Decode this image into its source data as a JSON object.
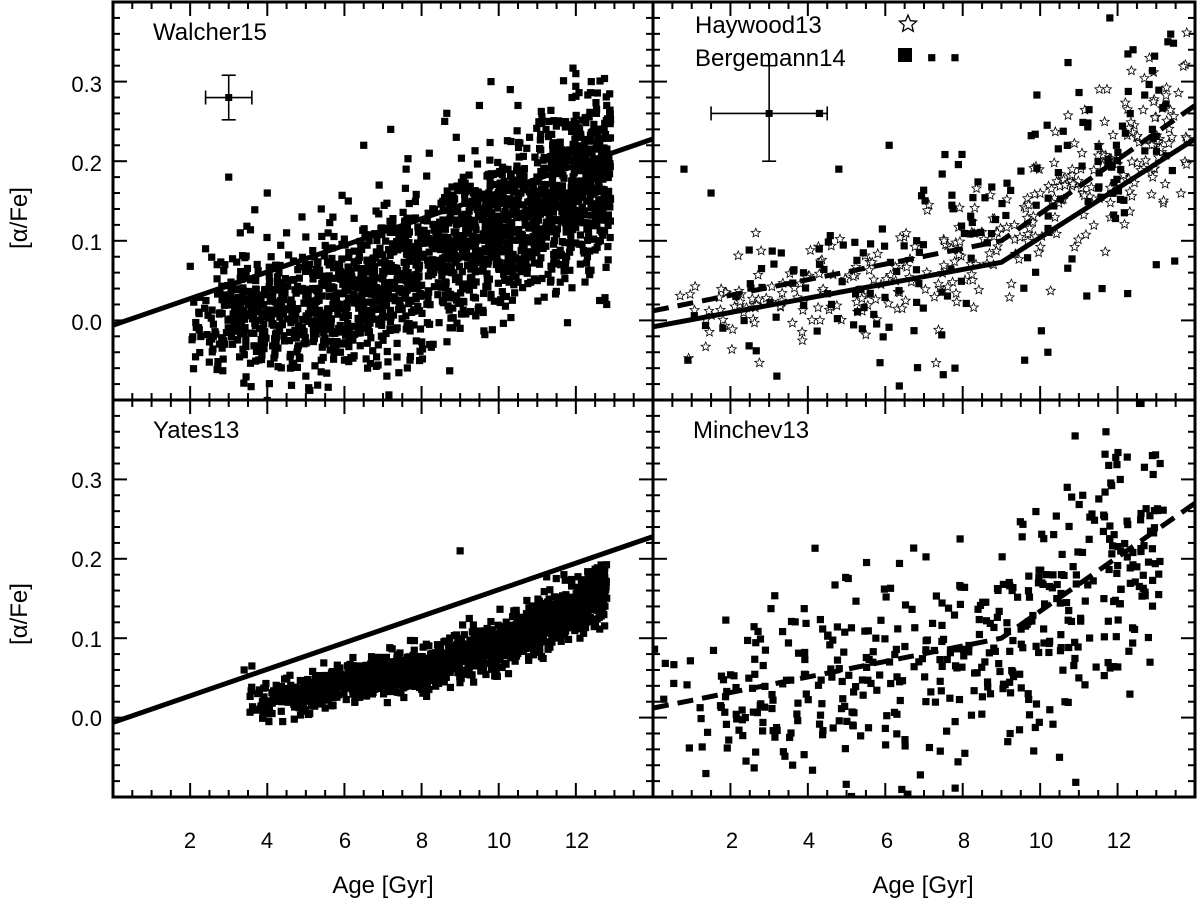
{
  "chart_data": [
    {
      "type": "scatter",
      "title": "Walcher15",
      "xlabel": "",
      "ylabel": "[α/Fe]",
      "xlim": [
        0,
        14
      ],
      "ylim": [
        -0.1,
        0.4
      ],
      "x_ticks": [
        2,
        4,
        6,
        8,
        10,
        12
      ],
      "y_ticks": [
        0.0,
        0.1,
        0.2,
        0.3
      ],
      "y_tick_labels": [
        "0.0",
        "0.1",
        "0.2",
        "0.3"
      ],
      "series": [
        {
          "name": "Walcher15",
          "marker": "square",
          "points": [
            [
              2.4,
              0.09
            ],
            [
              2.7,
              0.07
            ],
            [
              2.9,
              0.07
            ],
            [
              3.3,
              0.11
            ],
            [
              3.7,
              0.05
            ],
            [
              4.1,
              0.08
            ],
            [
              4.5,
              0.11
            ],
            [
              4.9,
              0.13
            ],
            [
              5.4,
              0.14
            ],
            [
              6.1,
              0.15
            ],
            [
              6.9,
              0.17
            ],
            [
              7.6,
              0.19
            ],
            [
              8.2,
              0.21
            ],
            [
              8.9,
              0.23
            ],
            [
              9.5,
              0.27
            ],
            [
              10.3,
              0.29
            ],
            [
              10.8,
              0.23
            ],
            [
              11.3,
              0.25
            ],
            [
              11.9,
              0.28
            ],
            [
              12.4,
              0.3
            ],
            [
              12.8,
              0.27
            ],
            [
              2.6,
              -0.02
            ],
            [
              2.9,
              -0.03
            ],
            [
              3.1,
              -0.03
            ],
            [
              3.4,
              -0.01
            ],
            [
              3.8,
              -0.01
            ],
            [
              4.2,
              -0.04
            ],
            [
              4.6,
              -0.06
            ],
            [
              5.0,
              -0.07
            ],
            [
              5.4,
              -0.05
            ],
            [
              6.0,
              -0.05
            ],
            [
              6.6,
              -0.06
            ],
            [
              7.1,
              -0.07
            ],
            [
              7.7,
              -0.05
            ],
            [
              8.3,
              -0.03
            ],
            [
              9.0,
              -0.01
            ],
            [
              9.6,
              0.01
            ],
            [
              10.2,
              0.03
            ],
            [
              11.0,
              0.05
            ],
            [
              11.6,
              0.07
            ],
            [
              12.3,
              0.08
            ],
            [
              12.8,
              0.02
            ],
            [
              3.0,
              0.18
            ],
            [
              4.0,
              0.16
            ],
            [
              6.5,
              0.22
            ],
            [
              7.2,
              0.24
            ],
            [
              8.6,
              0.25
            ],
            [
              9.8,
              0.3
            ],
            [
              10.5,
              0.27
            ],
            [
              12.0,
              0.31
            ]
          ],
          "cloud": {
            "n": 2100,
            "seed": 11,
            "age_range": [
              2.0,
              12.9
            ],
            "trend": [
              0.0,
              0.012,
              0.045,
              0.09,
              0.14,
              0.19
            ],
            "trend_ages": [
              2,
              5,
              7,
              9,
              11,
              12.9
            ],
            "scatter": 0.045
          }
        }
      ],
      "fit_lines": [
        {
          "name": "fit",
          "style": "solid",
          "points": [
            [
              0,
              -0.006
            ],
            [
              14,
              0.228
            ]
          ]
        }
      ],
      "error_bar": {
        "x": 3.0,
        "y": 0.28,
        "xerr": 0.6,
        "yerr": 0.028
      }
    },
    {
      "type": "scatter",
      "title": "",
      "xlabel": "",
      "ylabel": "",
      "xlim": [
        0,
        14
      ],
      "ylim": [
        -0.1,
        0.4
      ],
      "x_ticks": [
        2,
        4,
        6,
        8,
        10,
        12
      ],
      "y_ticks": [
        0.0,
        0.1,
        0.2,
        0.3
      ],
      "legend": [
        {
          "label": "Haywood13",
          "marker": "star"
        },
        {
          "label": "Bergemann14",
          "marker": "square"
        }
      ],
      "series": [
        {
          "name": "Haywood13",
          "marker": "star",
          "cloud": {
            "n": 330,
            "seed": 23,
            "age_range": [
              0.4,
              13.8
            ],
            "trend": [
              0.0,
              0.04,
              0.07,
              0.1,
              0.2,
              0.27
            ],
            "trend_ages": [
              0,
              4,
              7,
              9,
              12,
              14
            ],
            "scatter": 0.035
          }
        },
        {
          "name": "Bergemann14",
          "marker": "square",
          "cloud": {
            "n": 180,
            "seed": 37,
            "age_range": [
              0.5,
              13.5
            ],
            "trend": [
              0.0,
              0.04,
              0.07,
              0.1,
              0.2,
              0.27
            ],
            "trend_ages": [
              0,
              4,
              7,
              9,
              12,
              14
            ],
            "scatter": 0.06
          },
          "points": [
            [
              11.8,
              0.38
            ],
            [
              13.3,
              0.35
            ],
            [
              12.4,
              0.34
            ],
            [
              7.2,
              0.33
            ],
            [
              7.8,
              0.33
            ],
            [
              1.5,
              0.16
            ],
            [
              0.8,
              0.19
            ],
            [
              4.8,
              0.19
            ],
            [
              6.1,
              0.22
            ],
            [
              12.9,
              0.24
            ],
            [
              4.3,
              0.26
            ],
            [
              13.0,
              0.07
            ],
            [
              11.6,
              0.04
            ],
            [
              7.8,
              -0.06
            ],
            [
              3.2,
              -0.07
            ],
            [
              0.9,
              -0.05
            ],
            [
              9.6,
              -0.05
            ],
            [
              10.2,
              -0.04
            ]
          ]
        }
      ],
      "fit_lines": [
        {
          "name": "solid-fit",
          "style": "solid",
          "points": [
            [
              0,
              -0.008
            ],
            [
              9.0,
              0.073
            ],
            [
              14,
              0.228
            ]
          ]
        },
        {
          "name": "dashed-fit",
          "style": "dashed",
          "points": [
            [
              0,
              0.012
            ],
            [
              9.0,
              0.1
            ],
            [
              14,
              0.27
            ]
          ]
        }
      ],
      "error_bar": {
        "x": 3.0,
        "y": 0.26,
        "xerr": 1.5,
        "yerr": 0.06
      }
    },
    {
      "type": "scatter",
      "title": "Yates13",
      "xlabel": "Age [Gyr]",
      "ylabel": "[α/Fe]",
      "xlim": [
        0,
        14
      ],
      "ylim": [
        -0.1,
        0.4
      ],
      "x_ticks": [
        2,
        4,
        6,
        8,
        10,
        12
      ],
      "x_tick_labels": [
        "2",
        "4",
        "6",
        "8",
        "10",
        "12"
      ],
      "y_ticks": [
        0.0,
        0.1,
        0.2,
        0.3
      ],
      "y_tick_labels": [
        "0.0",
        "0.1",
        "0.2",
        "0.3"
      ],
      "series": [
        {
          "name": "Yates13",
          "marker": "square",
          "points": [
            [
              9.0,
              0.21
            ],
            [
              3.6,
              0.065
            ],
            [
              3.4,
              0.06
            ],
            [
              4.4,
              -0.005
            ],
            [
              5.1,
              0.005
            ],
            [
              4.7,
              -0.002
            ]
          ],
          "cloud": {
            "n": 1500,
            "seed": 53,
            "age_range": [
              3.5,
              12.8
            ],
            "trend": [
              0.015,
              0.03,
              0.045,
              0.06,
              0.09,
              0.13,
              0.16
            ],
            "trend_ages": [
              3.5,
              5,
              6,
              8,
              10,
              11.5,
              12.8
            ],
            "scatter": 0.014
          }
        }
      ],
      "fit_lines": [
        {
          "name": "fit",
          "style": "solid",
          "points": [
            [
              0,
              -0.006
            ],
            [
              14,
              0.228
            ]
          ]
        }
      ]
    },
    {
      "type": "scatter",
      "title": "Minchev13",
      "xlabel": "Age [Gyr]",
      "ylabel": "",
      "xlim": [
        0,
        14
      ],
      "ylim": [
        -0.1,
        0.4
      ],
      "x_ticks": [
        2,
        4,
        6,
        8,
        10,
        12
      ],
      "x_tick_labels": [
        "2",
        "4",
        "6",
        "8",
        "10",
        "12"
      ],
      "y_ticks": [
        0.0,
        0.1,
        0.2,
        0.3
      ],
      "series": [
        {
          "name": "Minchev13",
          "marker": "square",
          "points": [
            [
              11.7,
              0.36
            ],
            [
              12.9,
              0.33
            ],
            [
              13.1,
              0.32
            ],
            [
              10.7,
              0.29
            ],
            [
              11.1,
              0.28
            ],
            [
              10.5,
              -0.05
            ],
            [
              11.0,
              0.05
            ]
          ],
          "cloud": {
            "n": 470,
            "seed": 71,
            "age_range": [
              0.0,
              13.2
            ],
            "trend": [
              0.0,
              0.03,
              0.06,
              0.1,
              0.16,
              0.22
            ],
            "trend_ages": [
              0,
              3,
              6,
              9,
              11,
              13.2
            ],
            "scatter": 0.065
          }
        }
      ],
      "fit_lines": [
        {
          "name": "dashed-fit",
          "style": "dashed",
          "points": [
            [
              0,
              0.012
            ],
            [
              9.0,
              0.1
            ],
            [
              14,
              0.27
            ]
          ]
        }
      ]
    }
  ]
}
